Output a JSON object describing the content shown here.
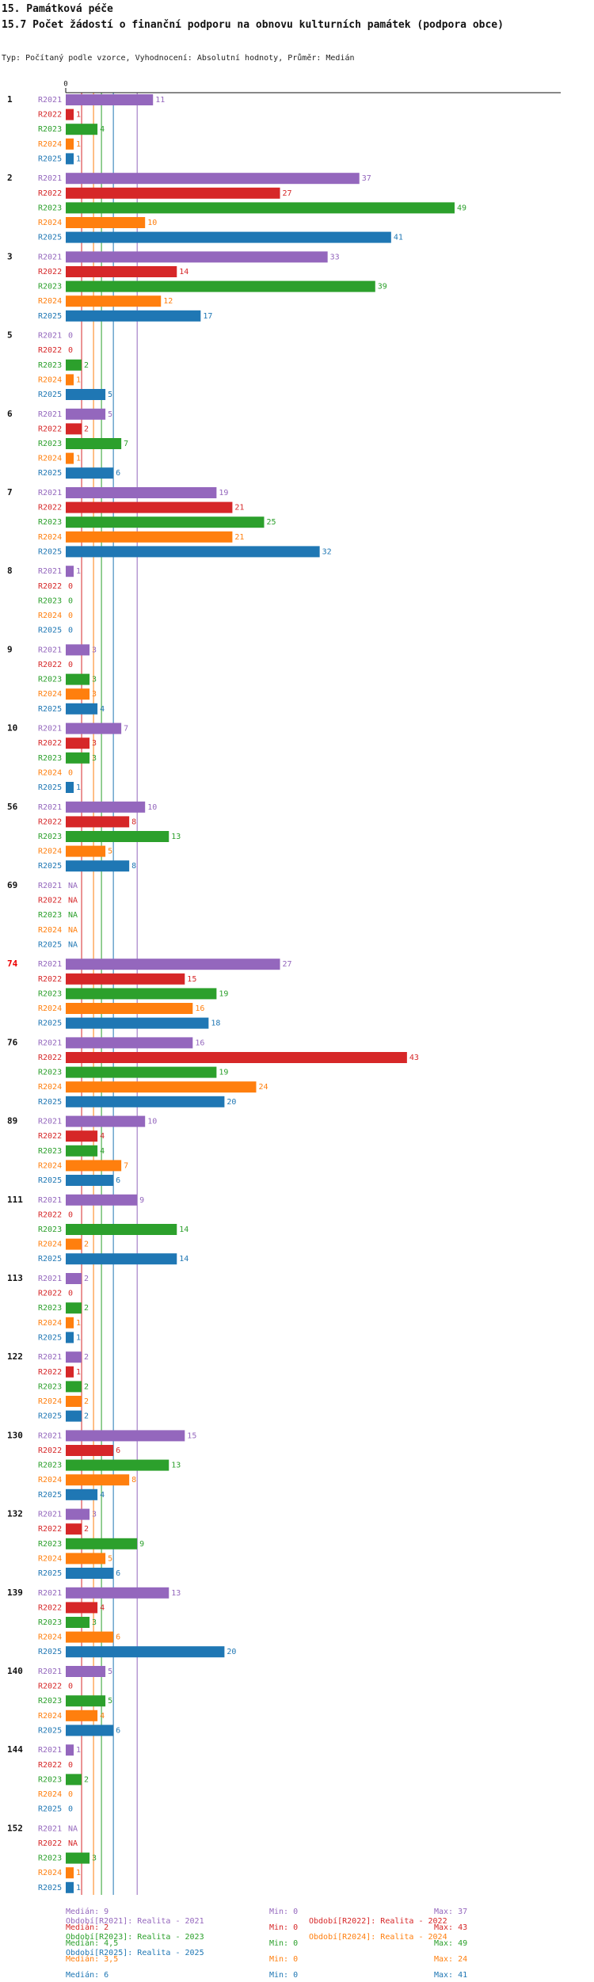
{
  "header": {
    "section": "15. Památková péče",
    "title": "15.7 Počet žádostí o finanční podporu na obnovu kulturních památek (podpora obce)",
    "subtitle": "Typ: Počítaný podle vzorce, Vyhodnocení: Absolutní hodnoty, Průměr: Medián"
  },
  "colors": {
    "R2021": "#9467bd",
    "R2022": "#d62728",
    "R2023": "#2ca02c",
    "R2024": "#ff7f0e",
    "R2025": "#1f77b4",
    "highlight": "#ee0000"
  },
  "chart_data": {
    "type": "bar",
    "orientation": "horizontal",
    "title": "15.7 Počet žádostí o finanční podporu na obnovu kulturních památek (podpora obce)",
    "axis_zero_label": "0",
    "xlim": [
      0,
      50
    ],
    "series_names": [
      "R2021",
      "R2022",
      "R2023",
      "R2024",
      "R2025"
    ],
    "groups": [
      {
        "label": "1",
        "highlight": false,
        "values": [
          11,
          1,
          4,
          1,
          1
        ]
      },
      {
        "label": "2",
        "highlight": false,
        "values": [
          37,
          27,
          49,
          10,
          41
        ]
      },
      {
        "label": "3",
        "highlight": false,
        "values": [
          33,
          14,
          39,
          12,
          17
        ]
      },
      {
        "label": "5",
        "highlight": false,
        "values": [
          0,
          0,
          2,
          1,
          5
        ]
      },
      {
        "label": "6",
        "highlight": false,
        "values": [
          5,
          2,
          7,
          1,
          6
        ]
      },
      {
        "label": "7",
        "highlight": false,
        "values": [
          19,
          21,
          25,
          21,
          32
        ]
      },
      {
        "label": "8",
        "highlight": false,
        "values": [
          1,
          0,
          0,
          0,
          0
        ]
      },
      {
        "label": "9",
        "highlight": false,
        "values": [
          3,
          0,
          3,
          3,
          4
        ]
      },
      {
        "label": "10",
        "highlight": false,
        "values": [
          7,
          3,
          3,
          0,
          1
        ]
      },
      {
        "label": "56",
        "highlight": false,
        "values": [
          10,
          8,
          13,
          5,
          8
        ]
      },
      {
        "label": "69",
        "highlight": false,
        "values": [
          "NA",
          "NA",
          "NA",
          "NA",
          "NA"
        ]
      },
      {
        "label": "74",
        "highlight": true,
        "values": [
          27,
          15,
          19,
          16,
          18
        ]
      },
      {
        "label": "76",
        "highlight": false,
        "values": [
          16,
          43,
          19,
          24,
          20
        ]
      },
      {
        "label": "89",
        "highlight": false,
        "values": [
          10,
          4,
          4,
          7,
          6
        ]
      },
      {
        "label": "111",
        "highlight": false,
        "values": [
          9,
          0,
          14,
          2,
          14
        ]
      },
      {
        "label": "113",
        "highlight": false,
        "values": [
          2,
          0,
          2,
          1,
          1
        ]
      },
      {
        "label": "122",
        "highlight": false,
        "values": [
          2,
          1,
          2,
          2,
          2
        ]
      },
      {
        "label": "130",
        "highlight": false,
        "values": [
          15,
          6,
          13,
          8,
          4
        ]
      },
      {
        "label": "132",
        "highlight": false,
        "values": [
          3,
          2,
          9,
          5,
          6
        ]
      },
      {
        "label": "139",
        "highlight": false,
        "values": [
          13,
          4,
          3,
          6,
          20
        ]
      },
      {
        "label": "140",
        "highlight": false,
        "values": [
          5,
          0,
          5,
          4,
          6
        ]
      },
      {
        "label": "144",
        "highlight": false,
        "values": [
          1,
          0,
          2,
          0,
          0
        ]
      },
      {
        "label": "152",
        "highlight": false,
        "values": [
          "NA",
          "NA",
          "3",
          "1",
          "1"
        ]
      }
    ],
    "medians": [
      9,
      2,
      4.5,
      3.5,
      6
    ],
    "legend": [
      "Období[R2021]: Realita - 2021",
      "Období[R2022]: Realita - 2022",
      "Období[R2023]: Realita - 2023",
      "Období[R2024]: Realita - 2024",
      "Období[R2025]: Realita - 2025"
    ],
    "stats": [
      {
        "median": "Medián: 9",
        "min": "Min: 0",
        "max": "Max: 37"
      },
      {
        "median": "Medián: 2",
        "min": "Min: 0",
        "max": "Max: 43"
      },
      {
        "median": "Medián: 4,5",
        "min": "Min: 0",
        "max": "Max: 49"
      },
      {
        "median": "Medián: 3,5",
        "min": "Min: 0",
        "max": "Max: 24"
      },
      {
        "median": "Medián: 6",
        "min": "Min: 0",
        "max": "Max: 41"
      }
    ]
  }
}
